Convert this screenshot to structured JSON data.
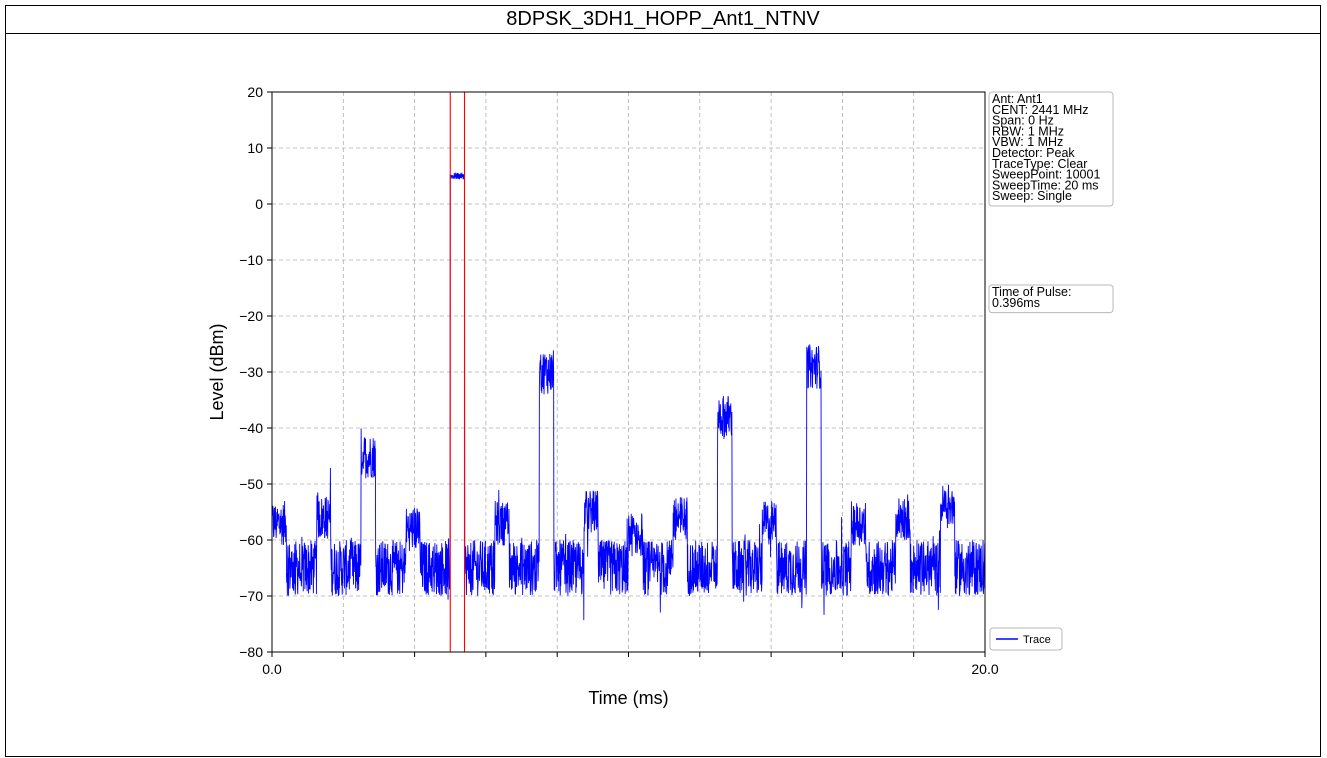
{
  "chart_title": "8DPSK_3DH1_HOPP_Ant1_NTNV",
  "colors": {
    "trace": "#0000ff",
    "marker": "#ff0000",
    "grid": "#b0b0b0",
    "frame": "#000000"
  },
  "chart_data": {
    "type": "line",
    "title": "8DPSK_3DH1_HOPP_Ant1_NTNV",
    "xlabel": "Time (ms)",
    "ylabel": "Level (dBm)",
    "xlim": [
      0.0,
      20.0
    ],
    "ylim": [
      -80,
      20
    ],
    "x_tick_labels": [
      {
        "value": 0.0,
        "label": "0.0"
      },
      {
        "value": 20.0,
        "label": "20.0"
      }
    ],
    "x_minor_ticks": [
      2,
      4,
      6,
      8,
      10,
      12,
      14,
      16,
      18
    ],
    "y_ticks": [
      20,
      10,
      0,
      -10,
      -20,
      -30,
      -40,
      -50,
      -60,
      -70,
      -80
    ],
    "y_tick_labels": [
      "20",
      "10",
      "0",
      "−10",
      "−20",
      "−30",
      "−40",
      "−50",
      "−60",
      "−70",
      "−80"
    ],
    "grid": true,
    "legend": {
      "placement": "bottom-right",
      "entries": [
        "Trace"
      ]
    },
    "markers_ms": [
      5.0,
      5.4
    ],
    "noise_floor_dbm": -65,
    "bursts": [
      {
        "start": 0.0,
        "end": 0.4,
        "level": -57
      },
      {
        "start": 1.25,
        "end": 1.65,
        "level": -56
      },
      {
        "start": 2.5,
        "end": 2.9,
        "level": -45
      },
      {
        "start": 3.75,
        "end": 4.15,
        "level": -58
      },
      {
        "start": 5.0,
        "end": 5.4,
        "level": 5
      },
      {
        "start": 6.25,
        "end": 6.65,
        "level": -57
      },
      {
        "start": 7.5,
        "end": 7.9,
        "level": -30
      },
      {
        "start": 8.75,
        "end": 9.15,
        "level": -55
      },
      {
        "start": 10.0,
        "end": 10.4,
        "level": -59
      },
      {
        "start": 11.25,
        "end": 11.65,
        "level": -56
      },
      {
        "start": 12.5,
        "end": 12.9,
        "level": -38
      },
      {
        "start": 13.75,
        "end": 14.15,
        "level": -57
      },
      {
        "start": 15.0,
        "end": 15.4,
        "level": -29
      },
      {
        "start": 16.25,
        "end": 16.65,
        "level": -57
      },
      {
        "start": 17.5,
        "end": 17.9,
        "level": -56
      },
      {
        "start": 18.75,
        "end": 19.15,
        "level": -54
      }
    ],
    "series": [
      {
        "name": "Trace"
      }
    ]
  },
  "settings_box": {
    "lines": [
      "Ant: Ant1",
      "CENT: 2441 MHz",
      "Span: 0 Hz",
      "RBW: 1 MHz",
      "VBW: 1 MHz",
      "Detector: Peak",
      "TraceType: Clear",
      "SweepPoint: 10001",
      "SweepTime: 20 ms",
      "Sweep: Single"
    ]
  },
  "pulse_box": {
    "lines": [
      "Time of Pulse:",
      " 0.396ms"
    ]
  }
}
